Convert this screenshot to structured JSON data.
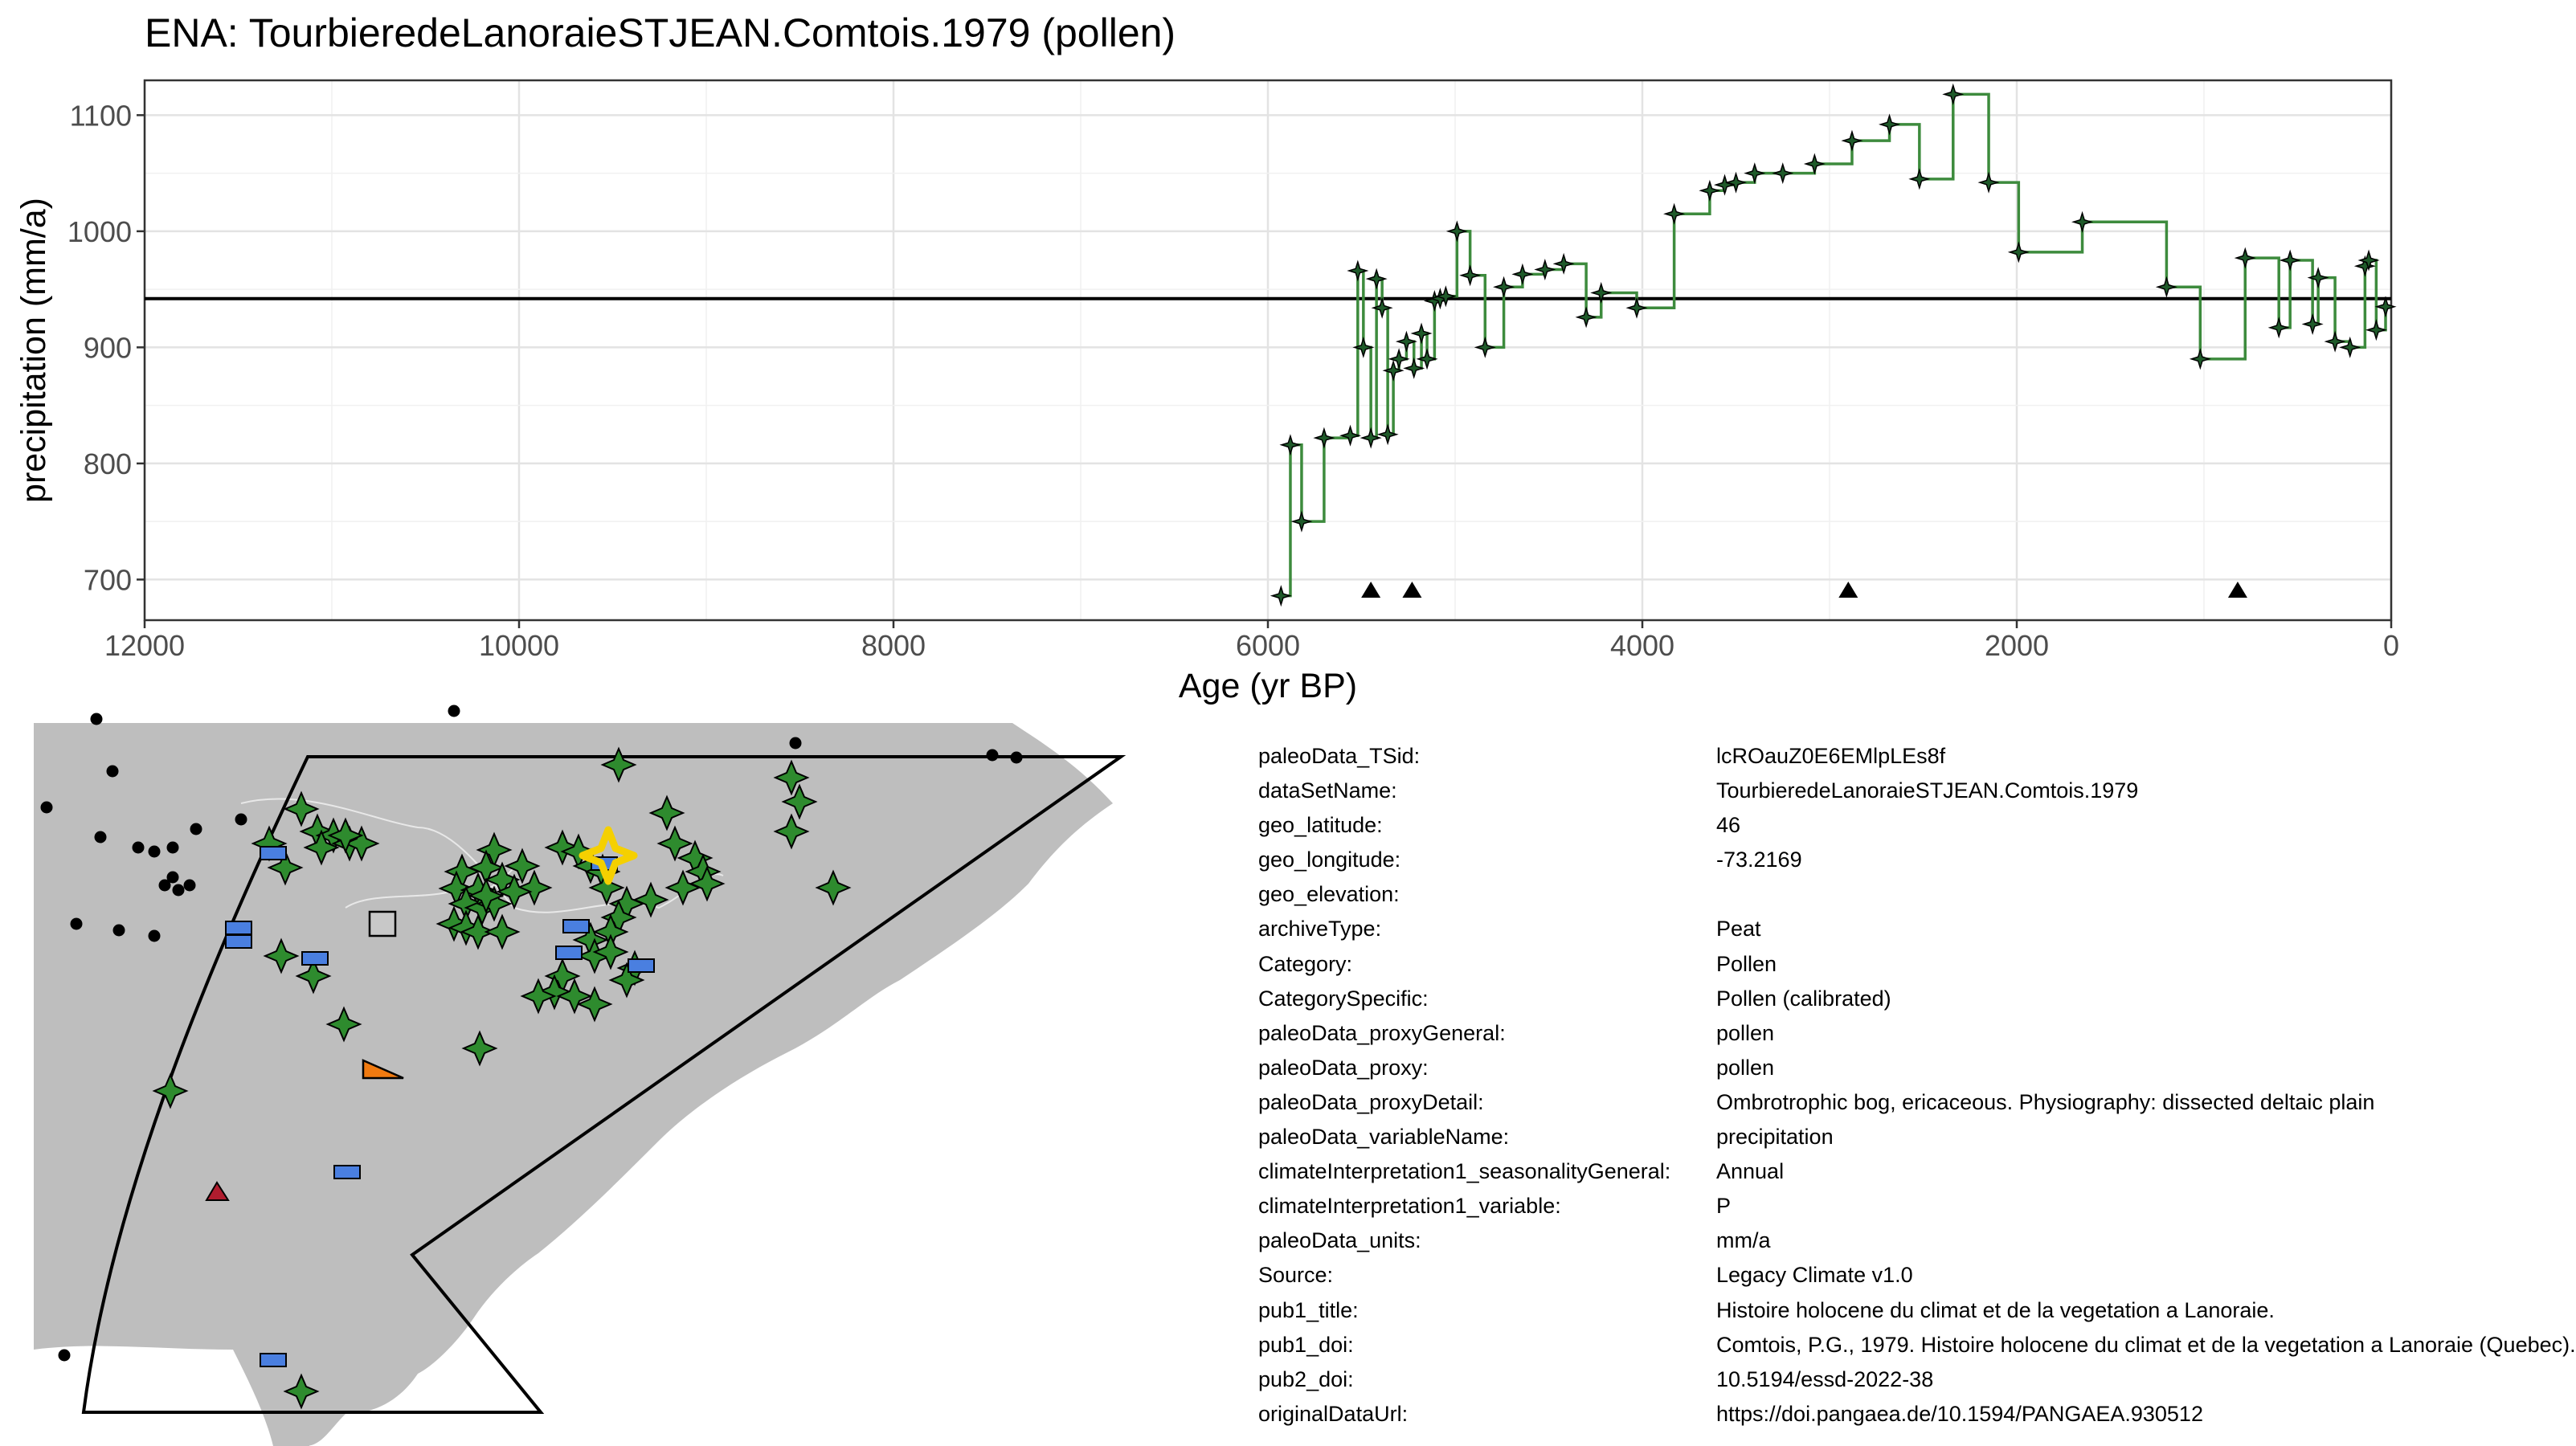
{
  "chart_data": {
    "type": "line",
    "title": "ENA: TourbieredeLanoraieSTJEAN.Comtois.1979 (pollen)",
    "xlabel": "Age (yr BP)",
    "ylabel": "precipitation (mm/a)",
    "xlim": [
      12000,
      0
    ],
    "ylim": [
      665,
      1130
    ],
    "x_ticks": [
      12000,
      10000,
      8000,
      6000,
      4000,
      2000,
      0
    ],
    "y_ticks": [
      700,
      800,
      900,
      1000,
      1100
    ],
    "grid": true,
    "reference_line": 942,
    "age_control_markers": [
      5450,
      5230,
      2900,
      820
    ],
    "series": [
      {
        "color": "#3d8b3d",
        "x": [
          5930,
          5880,
          5820,
          5700,
          5560,
          5520,
          5490,
          5450,
          5420,
          5390,
          5360,
          5330,
          5300,
          5260,
          5220,
          5180,
          5150,
          5110,
          5080,
          5050,
          4990,
          4920,
          4840,
          4740,
          4640,
          4520,
          4420,
          4300,
          4220,
          4030,
          3830,
          3640,
          3560,
          3500,
          3400,
          3250,
          3080,
          2880,
          2680,
          2520,
          2340,
          2150,
          1990,
          1650,
          1200,
          1020,
          780,
          600,
          540,
          420,
          390,
          300,
          220,
          140,
          120,
          80,
          30
        ],
        "y": [
          686,
          816,
          750,
          822,
          824,
          966,
          900,
          822,
          959,
          934,
          825,
          880,
          890,
          905,
          882,
          912,
          890,
          940,
          942,
          944,
          1000,
          962,
          900,
          952,
          963,
          967,
          972,
          926,
          947,
          934,
          1015,
          1035,
          1040,
          1042,
          1050,
          1050,
          1058,
          1078,
          1092,
          1045,
          1118,
          1042,
          982,
          1008,
          952,
          890,
          977,
          917,
          975,
          920,
          960,
          905,
          900,
          970,
          975,
          915,
          935
        ]
      }
    ]
  },
  "map": {
    "site_color": "#f5d000",
    "land_color": "#bebebe",
    "pollen_color": "#2e8b2e",
    "other_colors": [
      "#4a7fe0",
      "#f07a10",
      "#b01c2e",
      "#c8c8c8"
    ]
  },
  "metadata": [
    {
      "key": "paleoData_TSid:",
      "value": "lcROauZ0E6EMlpLEs8f"
    },
    {
      "key": "dataSetName:",
      "value": "TourbieredeLanoraieSTJEAN.Comtois.1979"
    },
    {
      "key": "geo_latitude:",
      "value": "46"
    },
    {
      "key": "geo_longitude:",
      "value": "-73.2169"
    },
    {
      "key": "geo_elevation:",
      "value": ""
    },
    {
      "key": "archiveType:",
      "value": "Peat"
    },
    {
      "key": "Category:",
      "value": "Pollen"
    },
    {
      "key": "CategorySpecific:",
      "value": "Pollen (calibrated)"
    },
    {
      "key": "paleoData_proxyGeneral:",
      "value": "pollen"
    },
    {
      "key": "paleoData_proxy:",
      "value": "pollen"
    },
    {
      "key": "paleoData_proxyDetail:",
      "value": "Ombrotrophic bog, ericaceous. Physiography: dissected deltaic plain"
    },
    {
      "key": "paleoData_variableName:",
      "value": "precipitation"
    },
    {
      "key": "climateInterpretation1_seasonalityGeneral:",
      "value": "Annual"
    },
    {
      "key": "climateInterpretation1_variable:",
      "value": "P"
    },
    {
      "key": "paleoData_units:",
      "value": "mm/a"
    },
    {
      "key": "Source:",
      "value": "Legacy Climate v1.0"
    },
    {
      "key": "pub1_title:",
      "value": "Histoire holocene du climat et de la vegetation a Lanoraie."
    },
    {
      "key": "pub1_doi:",
      "value": "Comtois, P.G., 1979. Histoire holocene du climat et de la vegetation a Lanoraie (Quebec)."
    },
    {
      "key": "pub2_doi:",
      "value": "10.5194/essd-2022-38"
    },
    {
      "key": "originalDataUrl:",
      "value": "https://doi.pangaea.de/10.1594/PANGAEA.930512"
    }
  ]
}
